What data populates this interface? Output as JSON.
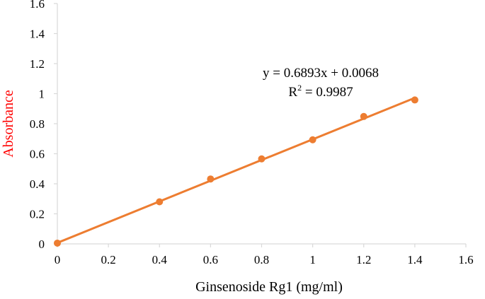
{
  "chart_data": {
    "type": "scatter",
    "title": "",
    "xlabel": "Ginsenoside Rg1 (mg/ml)",
    "ylabel": "Absorbance",
    "xlim": [
      0,
      1.6
    ],
    "ylim": [
      0,
      1.6
    ],
    "x_ticks": [
      "0",
      "0.2",
      "0.4",
      "0.6",
      "0.8",
      "1",
      "1.2",
      "1.4",
      "1.6"
    ],
    "y_ticks": [
      "0",
      "0.2",
      "0.4",
      "0.6",
      "0.8",
      "1",
      "1.2",
      "1.4",
      "1.6"
    ],
    "grid": false,
    "series": [
      {
        "x": [
          0,
          0.4,
          0.6,
          0.8,
          1.0,
          1.2,
          1.4
        ],
        "y": [
          0.005,
          0.28,
          0.432,
          0.566,
          0.693,
          0.848,
          0.958
        ]
      }
    ],
    "trendline": {
      "slope": 0.6893,
      "intercept": 0.0068,
      "x_range": [
        0,
        1.4
      ],
      "equation_text": "y = 0.6893x + 0.0068",
      "r2_prefix": "R",
      "r2_sup": "2",
      "r2_suffix": " = 0.9987"
    },
    "colors": {
      "series": "#ed7d31",
      "axis": "#d9d9d9",
      "ylabel": "#ff0000",
      "text": "#000000"
    }
  }
}
